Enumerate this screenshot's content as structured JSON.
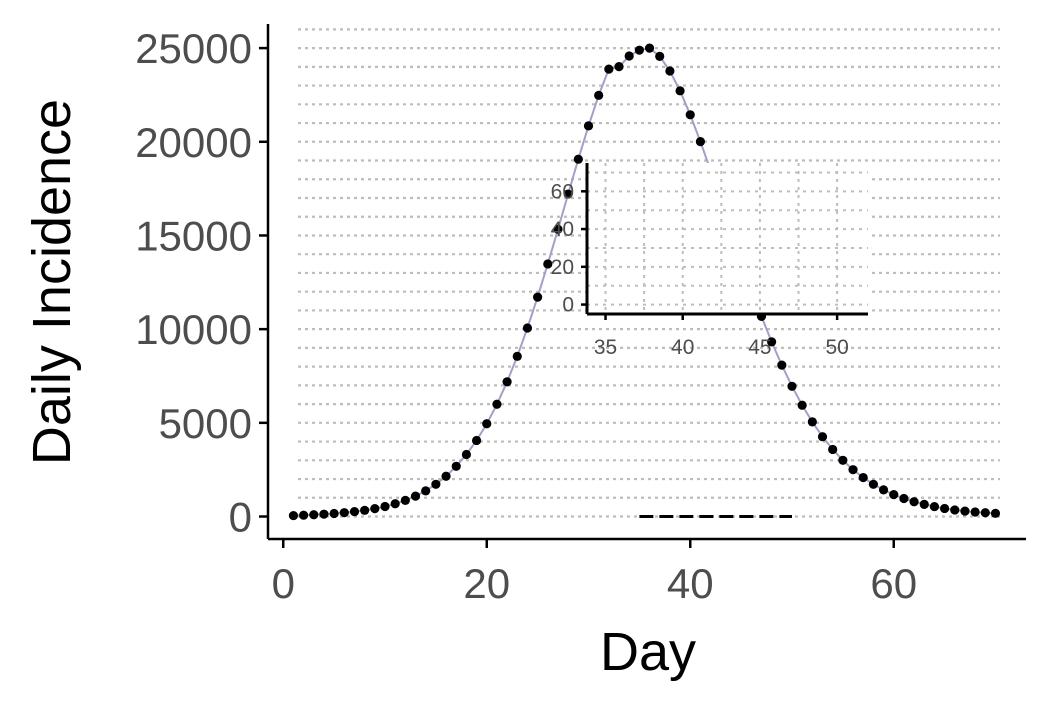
{
  "chart_data": [
    {
      "type": "scatter",
      "xlabel": "Day",
      "ylabel": "Daily Incidence",
      "xlim": [
        -1.5,
        73
      ],
      "ylim": [
        -1200,
        26500
      ],
      "xticks": [
        0,
        20,
        40,
        60
      ],
      "yticks": [
        0,
        5000,
        10000,
        15000,
        20000,
        25000
      ],
      "grid": {
        "horizontal_dotted": true,
        "vertical": false
      },
      "colors": {
        "points": "#000000",
        "fit_line": "#a59ec7",
        "grid": "#bdbdbd",
        "axis": "#000000"
      },
      "series": [
        {
          "kind": "points",
          "x": [
            1,
            2,
            3,
            4,
            5,
            6,
            7,
            8,
            9,
            10,
            11,
            12,
            13,
            14,
            15,
            16,
            17,
            18,
            19,
            20,
            21,
            22,
            23,
            24,
            25,
            26,
            27,
            28,
            29,
            30,
            31,
            32,
            33,
            34,
            35,
            36,
            37,
            38,
            39,
            40,
            41,
            42,
            43,
            44,
            45,
            46,
            47,
            48,
            49,
            50,
            51,
            52,
            53,
            54,
            55,
            56,
            57,
            58,
            59,
            60,
            61,
            62,
            63,
            64,
            65,
            66,
            67,
            68,
            69,
            70
          ],
          "y": [
            50,
            70,
            95,
            125,
            160,
            205,
            260,
            330,
            420,
            535,
            680,
            860,
            1090,
            1370,
            1720,
            2150,
            2680,
            3310,
            4060,
            4950,
            5990,
            7190,
            8550,
            10060,
            11710,
            13480,
            15330,
            17210,
            19070,
            20850,
            22480,
            23880,
            24010,
            24580,
            24890,
            25000,
            24560,
            23780,
            22720,
            21440,
            20010,
            18470,
            16870,
            15260,
            13670,
            12140,
            10680,
            9320,
            8080,
            6950,
            5940,
            5050,
            4260,
            3580,
            3000,
            2500,
            2080,
            1720,
            1420,
            1170,
            960,
            790,
            650,
            530,
            430,
            350,
            290,
            240,
            200,
            170
          ]
        },
        {
          "kind": "fit-line",
          "x": [
            1,
            2,
            3,
            4,
            5,
            6,
            7,
            8,
            9,
            10,
            11,
            12,
            13,
            14,
            15,
            16,
            17,
            18,
            19,
            20,
            21,
            22,
            23,
            24,
            25,
            26,
            27,
            28,
            29,
            30,
            31,
            32,
            33,
            34,
            35,
            36,
            37,
            38,
            39,
            40,
            41,
            42,
            43,
            44,
            45,
            46,
            47,
            48,
            49,
            50,
            51,
            52,
            53,
            54,
            55,
            56,
            57,
            58,
            59,
            60,
            61,
            62,
            63,
            64,
            65,
            66,
            67,
            68,
            69,
            70
          ],
          "y": [
            50,
            70,
            95,
            125,
            160,
            205,
            260,
            330,
            420,
            535,
            680,
            860,
            1090,
            1370,
            1720,
            2150,
            2680,
            3310,
            4060,
            4950,
            5990,
            7190,
            8550,
            10060,
            11710,
            13480,
            15330,
            17210,
            19070,
            20850,
            22480,
            23880,
            24010,
            24580,
            24890,
            25000,
            24560,
            23780,
            22720,
            21440,
            20010,
            18470,
            16870,
            15260,
            13670,
            12140,
            10680,
            9320,
            8080,
            6950,
            5940,
            5050,
            4260,
            3580,
            3000,
            2500,
            2080,
            1720,
            1420,
            1170,
            960,
            790,
            650,
            530,
            430,
            350,
            290,
            240,
            200,
            170
          ]
        },
        {
          "kind": "dashed-line",
          "x": [
            35,
            50
          ],
          "y": [
            0,
            0
          ]
        }
      ]
    },
    {
      "type": "line",
      "role": "inset",
      "xlabel": "",
      "ylabel": "",
      "xlim": [
        33.8,
        52
      ],
      "ylim": [
        -5,
        75
      ],
      "xticks": [
        35,
        40,
        45,
        50
      ],
      "yticks": [
        0,
        20,
        40,
        60
      ],
      "grid": {
        "horizontal_dotted": true,
        "vertical_dotted": true
      },
      "series": []
    }
  ]
}
